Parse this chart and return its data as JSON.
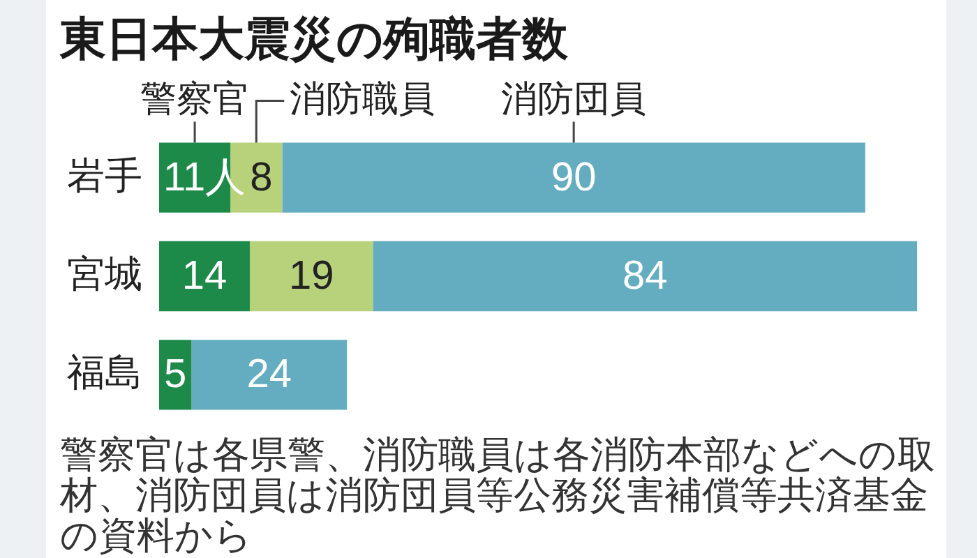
{
  "chart_data": {
    "type": "bar",
    "orientation": "horizontal",
    "stacked": true,
    "title": "東日本大震災の殉職者数",
    "categories": [
      "岩手",
      "宮城",
      "福島"
    ],
    "series": [
      {
        "name": "警察官",
        "color": "#1e8a4a",
        "values": [
          11,
          14,
          5
        ],
        "value_labels": [
          "11人",
          "14",
          "5"
        ]
      },
      {
        "name": "消防職員",
        "color": "#b8d27c",
        "values": [
          8,
          19,
          null
        ],
        "value_labels": [
          "8",
          "19",
          null
        ]
      },
      {
        "name": "消防団員",
        "color": "#64adc0",
        "values": [
          90,
          84,
          24
        ],
        "value_labels": [
          "90",
          "84",
          "24"
        ]
      }
    ],
    "tick_labels": "y",
    "annotations": [
      "警察官は各県警、消防職員は各消防本部などへの取材、消防団員は消防団員等公務災害補償等共済基金の資料から"
    ]
  }
}
